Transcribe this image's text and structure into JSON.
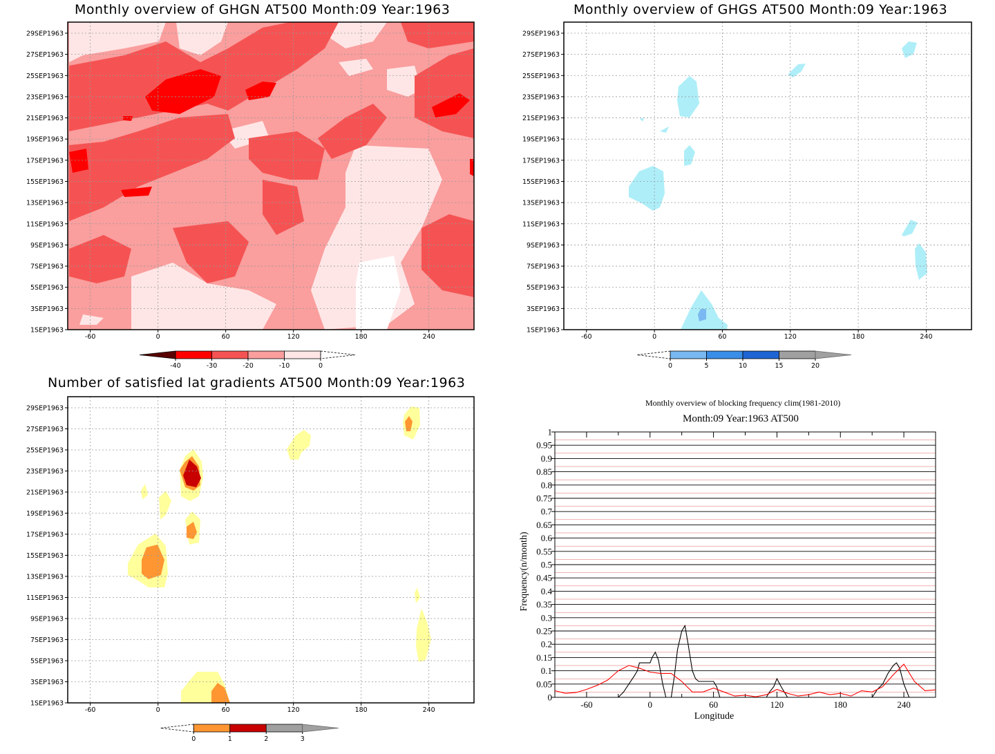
{
  "chart_data": [
    {
      "type": "heatmap",
      "title": "Monthly overview of GHGN AT500 Month:09 Year:1963",
      "x_ticks": [
        "-60",
        "0",
        "60",
        "120",
        "180",
        "240"
      ],
      "x_tick_values": [
        -60,
        0,
        60,
        120,
        180,
        240
      ],
      "xlim": [
        -80,
        280
      ],
      "y_ticks": [
        "1SEP1963",
        "3SEP1963",
        "5SEP1963",
        "7SEP1963",
        "9SEP1963",
        "11SEP1963",
        "13SEP1963",
        "15SEP1963",
        "17SEP1963",
        "19SEP1963",
        "21SEP1963",
        "23SEP1963",
        "25SEP1963",
        "27SEP1963",
        "29SEP1963"
      ],
      "colorbar": {
        "labels": [
          "-40",
          "-30",
          "-20",
          "-10",
          "0"
        ],
        "colors": [
          "#5a0000",
          "#ff0000",
          "#f55353",
          "#fa9e9e",
          "#ffe6e6"
        ]
      },
      "grid": true
    },
    {
      "type": "heatmap",
      "title": "Monthly overview of GHGS AT500 Month:09 Year:1963",
      "x_ticks": [
        "-60",
        "0",
        "60",
        "120",
        "180",
        "240"
      ],
      "x_tick_values": [
        -60,
        0,
        60,
        120,
        180,
        240
      ],
      "xlim": [
        -80,
        280
      ],
      "y_ticks": [
        "1SEP1963",
        "3SEP1963",
        "5SEP1963",
        "7SEP1963",
        "9SEP1963",
        "11SEP1963",
        "13SEP1963",
        "15SEP1963",
        "17SEP1963",
        "19SEP1963",
        "21SEP1963",
        "23SEP1963",
        "25SEP1963",
        "27SEP1963",
        "29SEP1963"
      ],
      "colorbar": {
        "labels": [
          "0",
          "5",
          "10",
          "15",
          "20"
        ],
        "colors": [
          "#aeeef8",
          "#79b8f0",
          "#3a8ee8",
          "#1e64d2",
          "#a0a0a0"
        ]
      },
      "grid": true
    },
    {
      "type": "heatmap",
      "title": "Number of satisfied lat gradients AT500 Month:09 Year:1963",
      "x_ticks": [
        "-60",
        "0",
        "60",
        "120",
        "180",
        "240"
      ],
      "x_tick_values": [
        -60,
        0,
        60,
        120,
        180,
        240
      ],
      "xlim": [
        -80,
        280
      ],
      "y_ticks": [
        "1SEP1963",
        "3SEP1963",
        "5SEP1963",
        "7SEP1963",
        "9SEP1963",
        "11SEP1963",
        "13SEP1963",
        "15SEP1963",
        "17SEP1963",
        "19SEP1963",
        "21SEP1963",
        "23SEP1963",
        "25SEP1963",
        "27SEP1963",
        "29SEP1963"
      ],
      "colorbar": {
        "labels": [
          "0",
          "1",
          "2",
          "3"
        ],
        "colors": [
          "#ffff9c",
          "#ff9632",
          "#c80000",
          "#a0a0a0"
        ]
      },
      "grid": true
    },
    {
      "type": "line",
      "title": "Monthly overview of blocking frequency clim(1981-2010)",
      "subtitle": "Month:09 Year:1963  AT500",
      "xlabel": "Longitude",
      "ylabel": "Frequency(n/month)",
      "xlim": [
        -90,
        270
      ],
      "ylim": [
        0,
        1
      ],
      "x_ticks": [
        "-60",
        "0",
        "60",
        "120",
        "180",
        "240"
      ],
      "x_tick_values": [
        -60,
        0,
        60,
        120,
        180,
        240
      ],
      "y_ticks": [
        "0",
        "0.05",
        "0.1",
        "0.15",
        "0.2",
        "0.25",
        "0.3",
        "0.35",
        "0.4",
        "0.45",
        "0.5",
        "0.55",
        "0.6",
        "0.65",
        "0.7",
        "0.75",
        "0.8",
        "0.85",
        "0.9",
        "0.95",
        "1"
      ],
      "series": [
        {
          "color": "#000000",
          "x": [
            -90,
            -30,
            -25,
            -20,
            -15,
            -12,
            -10,
            -5,
            0,
            2,
            5,
            8,
            12,
            15,
            17,
            20,
            23,
            26,
            30,
            33,
            36,
            40,
            43,
            46,
            50,
            55,
            60,
            63,
            66,
            70,
            80,
            90,
            100,
            110,
            113,
            117,
            120,
            124,
            127,
            130,
            140,
            150,
            160,
            170,
            180,
            190,
            200,
            210,
            215,
            220,
            225,
            230,
            233,
            236,
            240,
            245,
            250,
            260,
            270
          ],
          "y": [
            0,
            0,
            0.02,
            0.05,
            0.08,
            0.1,
            0.13,
            0.13,
            0.13,
            0.15,
            0.17,
            0.14,
            0.05,
            0,
            0,
            0,
            0.08,
            0.18,
            0.25,
            0.27,
            0.2,
            0.1,
            0.07,
            0.06,
            0.06,
            0.06,
            0.06,
            0.04,
            0,
            0,
            0,
            0,
            0,
            0,
            0.02,
            0.04,
            0.07,
            0.04,
            0.02,
            0,
            0,
            0,
            0,
            0,
            0,
            0,
            0,
            0,
            0.03,
            0.05,
            0.09,
            0.12,
            0.13,
            0.11,
            0.05,
            0,
            0,
            0,
            0
          ]
        },
        {
          "color": "#ff0000",
          "x": [
            -90,
            -80,
            -70,
            -60,
            -50,
            -40,
            -30,
            -20,
            -10,
            0,
            10,
            20,
            30,
            40,
            50,
            60,
            70,
            80,
            90,
            100,
            110,
            120,
            130,
            140,
            150,
            160,
            170,
            180,
            190,
            200,
            210,
            220,
            230,
            240,
            250,
            260,
            270
          ],
          "y": [
            0.025,
            0.015,
            0.018,
            0.03,
            0.045,
            0.065,
            0.1,
            0.12,
            0.11,
            0.095,
            0.09,
            0.09,
            0.06,
            0.02,
            0.02,
            0.035,
            0.02,
            0.005,
            0.008,
            0.002,
            0.01,
            0.03,
            0.015,
            0.005,
            0.01,
            0.02,
            0.01,
            0.015,
            0.005,
            0.025,
            0.02,
            0.04,
            0.085,
            0.125,
            0.06,
            0.025,
            0.028
          ]
        }
      ],
      "grid": true
    }
  ]
}
